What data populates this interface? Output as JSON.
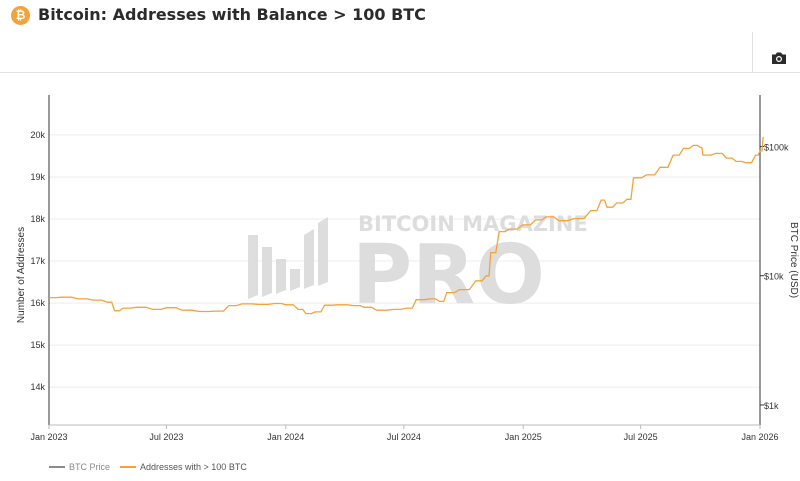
{
  "header": {
    "logo_symbol": "₿",
    "title": "Bitcoin: Addresses with Balance > 100 BTC"
  },
  "toolbar": {
    "camera_icon": "camera-icon"
  },
  "colors": {
    "series": "#f2a33a",
    "price": "#8c8c8c",
    "axis": "#333333",
    "grid": "#eeeeee",
    "watermark": "#dcdcdc"
  },
  "watermark": {
    "top": "BITCOIN MAGAZINE",
    "bottom": "PRO"
  },
  "chart_data": {
    "type": "line",
    "title": "Bitcoin: Addresses with Balance > 100 BTC",
    "ylabel": "Number of Addresses",
    "y2label": "BTC Price (USD)",
    "ylim": [
      13100,
      20950
    ],
    "y_ticks": [
      14000,
      15000,
      16000,
      17000,
      18000,
      19000,
      20000
    ],
    "y_tick_labels": [
      "14k",
      "15k",
      "16k",
      "17k",
      "18k",
      "19k",
      "20k"
    ],
    "y2_scale": "log",
    "y2_ticks": [
      1000,
      10000,
      100000
    ],
    "y2_tick_labels": [
      "$1k",
      "$10k",
      "$100k"
    ],
    "x_tick_labels": [
      "Jan 2023",
      "Jul 2023",
      "Jan 2024",
      "Jul 2024",
      "Jan 2025",
      "Jul 2025",
      "Jan 2026"
    ],
    "x_ticks": [
      "2023-01-01",
      "2023-07-01",
      "2024-01-01",
      "2024-07-01",
      "2025-01-01",
      "2025-07-01",
      "2026-01-01"
    ],
    "grid": true,
    "legend_position": "bottom-left",
    "series": [
      {
        "name": "BTC Price",
        "values": []
      },
      {
        "name": "Addresses with > 100 BTC",
        "points": [
          [
            "2023-01-01",
            16130
          ],
          [
            "2023-01-20",
            16140
          ],
          [
            "2023-02-15",
            16100
          ],
          [
            "2023-03-10",
            16070
          ],
          [
            "2023-04-01",
            16020
          ],
          [
            "2023-04-12",
            15820
          ],
          [
            "2023-04-25",
            15880
          ],
          [
            "2023-05-15",
            15900
          ],
          [
            "2023-06-10",
            15850
          ],
          [
            "2023-07-01",
            15890
          ],
          [
            "2023-07-25",
            15830
          ],
          [
            "2023-08-20",
            15800
          ],
          [
            "2023-09-15",
            15810
          ],
          [
            "2023-10-05",
            15940
          ],
          [
            "2023-10-25",
            15980
          ],
          [
            "2023-11-20",
            15970
          ],
          [
            "2023-12-15",
            15990
          ],
          [
            "2024-01-01",
            15960
          ],
          [
            "2024-01-20",
            15850
          ],
          [
            "2024-02-01",
            15750
          ],
          [
            "2024-02-15",
            15790
          ],
          [
            "2024-03-01",
            15950
          ],
          [
            "2024-03-20",
            15960
          ],
          [
            "2024-04-15",
            15940
          ],
          [
            "2024-05-01",
            15900
          ],
          [
            "2024-05-20",
            15830
          ],
          [
            "2024-06-15",
            15850
          ],
          [
            "2024-07-05",
            15880
          ],
          [
            "2024-07-20",
            16080
          ],
          [
            "2024-08-10",
            16100
          ],
          [
            "2024-08-25",
            16040
          ],
          [
            "2024-09-05",
            16250
          ],
          [
            "2024-09-25",
            16320
          ],
          [
            "2024-10-20",
            16530
          ],
          [
            "2024-11-05",
            16650
          ],
          [
            "2024-11-12",
            17200
          ],
          [
            "2024-11-25",
            17700
          ],
          [
            "2024-12-10",
            17760
          ],
          [
            "2024-12-31",
            17860
          ],
          [
            "2025-01-20",
            17980
          ],
          [
            "2025-02-05",
            18050
          ],
          [
            "2025-02-25",
            17960
          ],
          [
            "2025-03-20",
            18010
          ],
          [
            "2025-04-15",
            18200
          ],
          [
            "2025-05-01",
            18450
          ],
          [
            "2025-05-10",
            18280
          ],
          [
            "2025-05-25",
            18380
          ],
          [
            "2025-06-10",
            18470
          ],
          [
            "2025-06-20",
            18980
          ],
          [
            "2025-07-10",
            19050
          ],
          [
            "2025-07-31",
            19230
          ],
          [
            "2025-08-20",
            19520
          ],
          [
            "2025-09-05",
            19680
          ],
          [
            "2025-09-20",
            19750
          ],
          [
            "2025-10-01",
            19700
          ],
          [
            "2025-10-05",
            19520
          ],
          [
            "2025-10-25",
            19560
          ],
          [
            "2025-11-10",
            19450
          ],
          [
            "2025-11-25",
            19370
          ],
          [
            "2025-12-10",
            19340
          ],
          [
            "2025-12-25",
            19520
          ],
          [
            "2026-01-01",
            19620
          ],
          [
            "2026-01-06",
            19950
          ]
        ]
      }
    ]
  }
}
